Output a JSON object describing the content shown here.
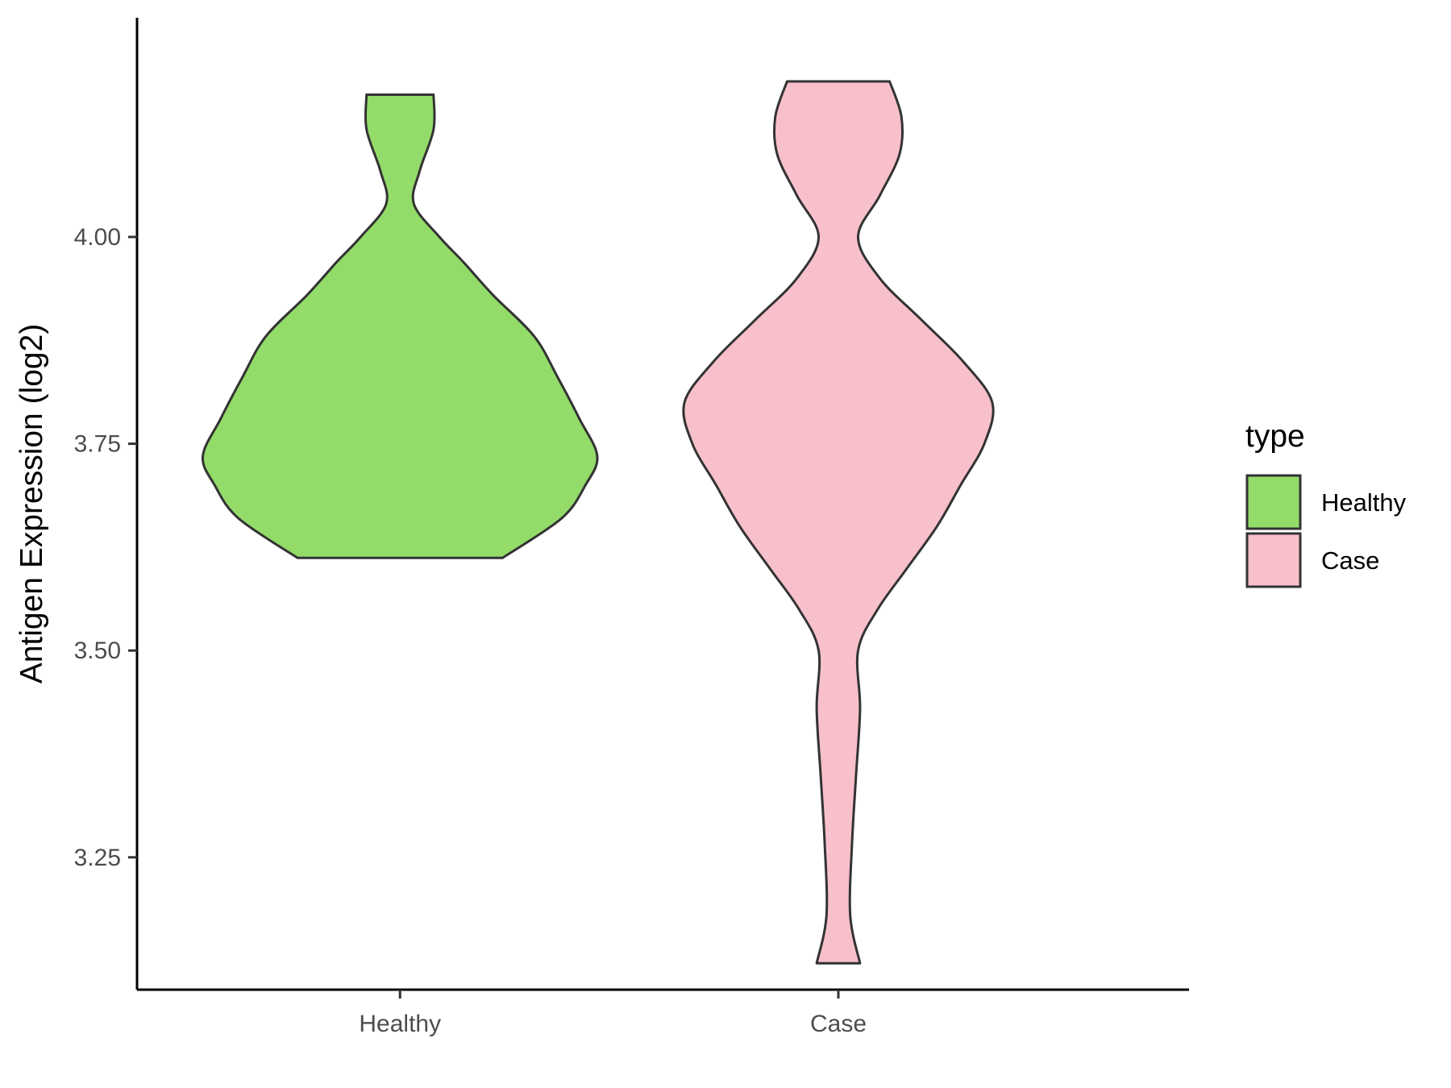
{
  "chart_data": {
    "type": "violin",
    "xlabel": "",
    "ylabel": "Antigen Expression (log2)",
    "categories": [
      "Healthy",
      "Case"
    ],
    "ylim": [
      3.09,
      4.265
    ],
    "yticks": [
      3.25,
      3.5,
      3.75,
      4.0
    ],
    "ytick_labels": [
      "3.25",
      "3.50",
      "3.75",
      "4.00"
    ],
    "grid": false,
    "legend": {
      "title": "type",
      "placement": "right",
      "entries": [
        {
          "label": "Healthy",
          "color": "#93dc6a"
        },
        {
          "label": "Case",
          "color": "#f8c0cb"
        }
      ]
    },
    "series": [
      {
        "category": "Healthy",
        "color": "#93dc6a",
        "min": 3.612,
        "max": 4.172,
        "profile": [
          [
            3.612,
            0.52
          ],
          [
            3.66,
            0.82
          ],
          [
            3.7,
            0.94
          ],
          [
            3.735,
            1.0
          ],
          [
            3.78,
            0.91
          ],
          [
            3.83,
            0.8
          ],
          [
            3.88,
            0.68
          ],
          [
            3.93,
            0.47
          ],
          [
            3.97,
            0.32
          ],
          [
            4.0,
            0.2
          ],
          [
            4.04,
            0.07
          ],
          [
            4.08,
            0.1
          ],
          [
            4.13,
            0.17
          ],
          [
            4.172,
            0.17
          ]
        ]
      },
      {
        "category": "Case",
        "color": "#f8c0cb",
        "min": 3.122,
        "max": 4.188,
        "profile": [
          [
            3.122,
            0.11
          ],
          [
            3.18,
            0.06
          ],
          [
            3.27,
            0.07
          ],
          [
            3.35,
            0.09
          ],
          [
            3.43,
            0.11
          ],
          [
            3.5,
            0.1
          ],
          [
            3.55,
            0.2
          ],
          [
            3.6,
            0.35
          ],
          [
            3.65,
            0.5
          ],
          [
            3.7,
            0.62
          ],
          [
            3.75,
            0.74
          ],
          [
            3.8,
            0.78
          ],
          [
            3.85,
            0.63
          ],
          [
            3.9,
            0.42
          ],
          [
            3.95,
            0.21
          ],
          [
            4.0,
            0.1
          ],
          [
            4.05,
            0.21
          ],
          [
            4.1,
            0.31
          ],
          [
            4.145,
            0.32
          ],
          [
            4.188,
            0.26
          ]
        ]
      }
    ]
  }
}
